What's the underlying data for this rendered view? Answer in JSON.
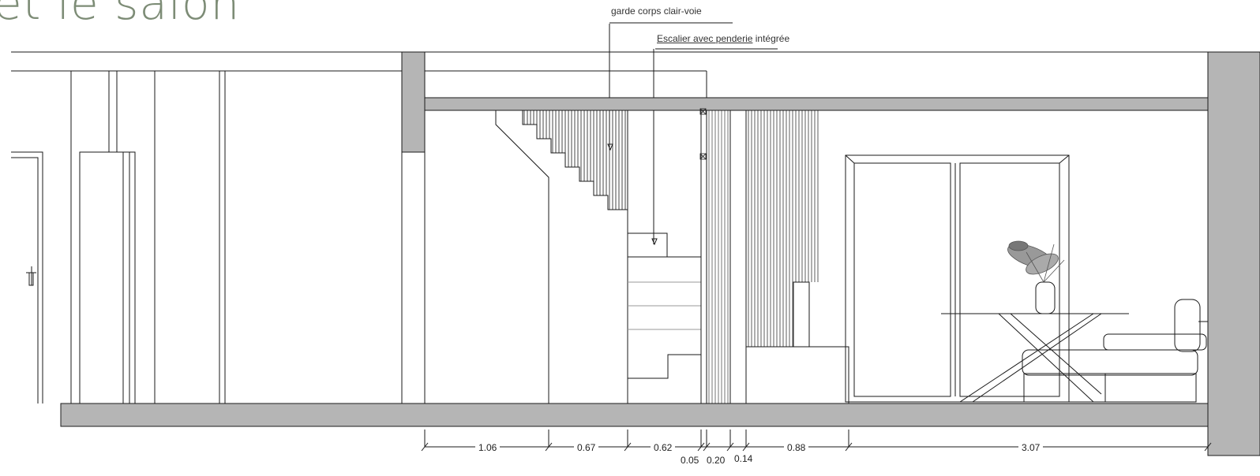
{
  "title_text": "et le salon",
  "annotations": {
    "garde_corps": "garde corps clair-voie",
    "escalier_prefix": "Escalier avec ",
    "escalier_penderie": "penderie",
    "escalier_suffix": " intégrée"
  },
  "dimensions": [
    "1.06",
    "0.67",
    "0.62",
    "0.05",
    "0.20",
    "0.14",
    "0.88",
    "3.07"
  ],
  "colors": {
    "title": "#7d8c76",
    "slab": "#b5b5b5",
    "line": "#1a1a1a"
  }
}
